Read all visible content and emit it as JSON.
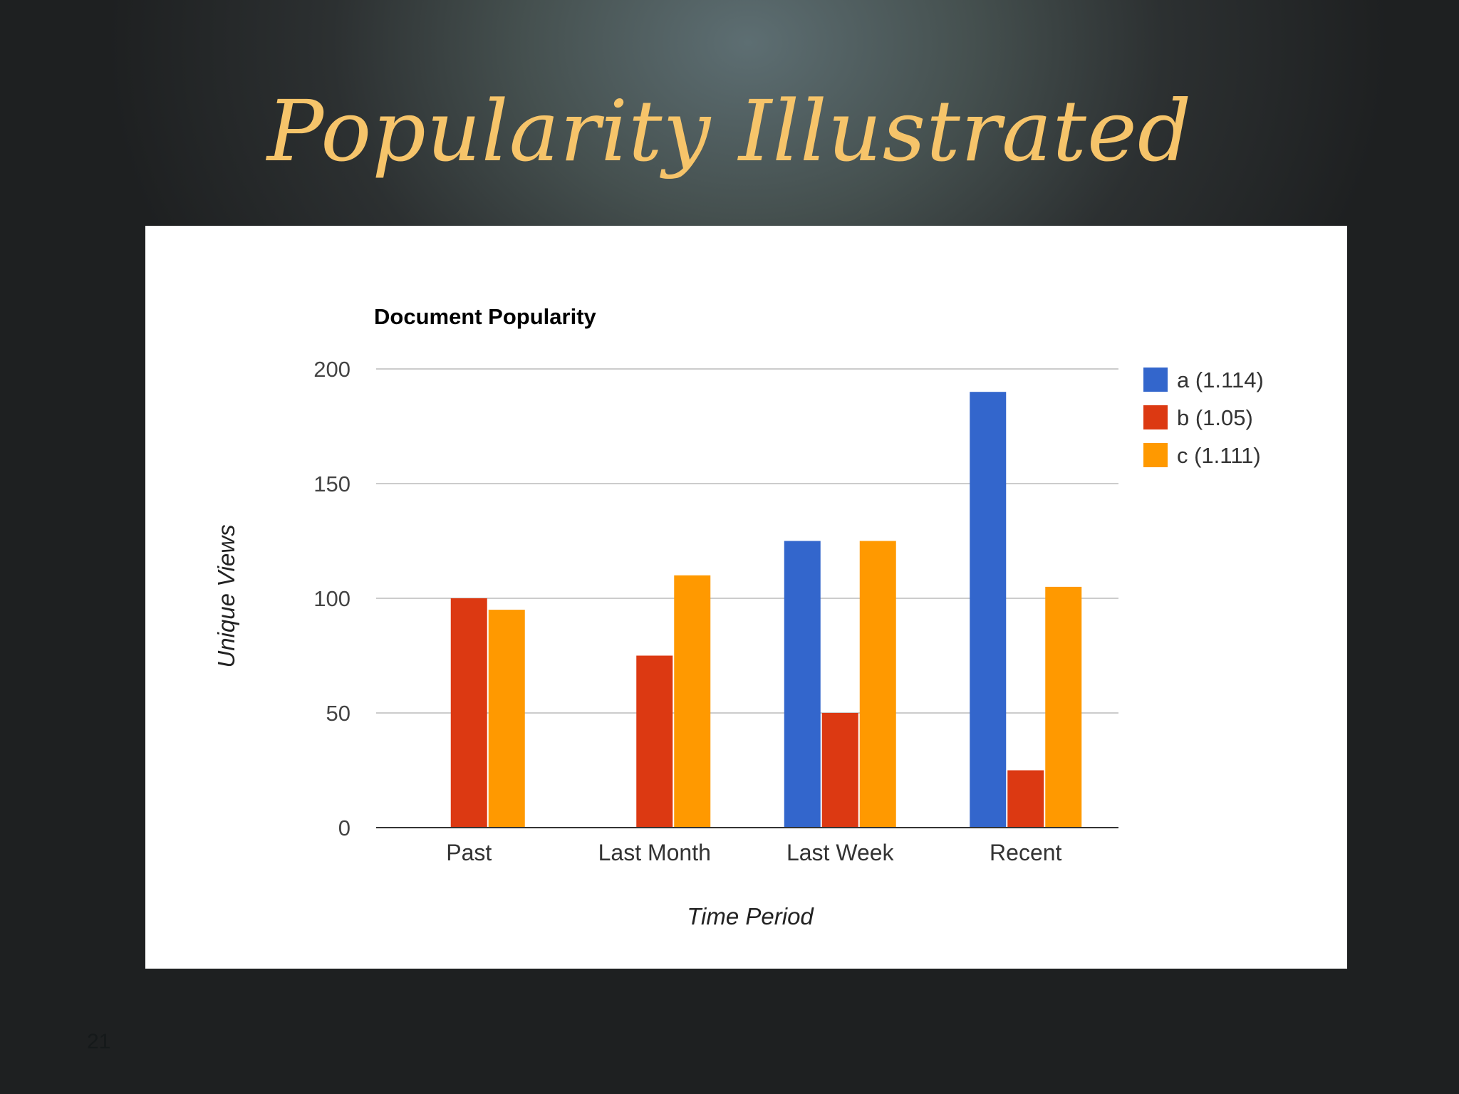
{
  "slide": {
    "title": "Popularity Illustrated",
    "page_number": "21"
  },
  "colors": {
    "title": "#f6c46a",
    "grid": "#cccccc",
    "axis": "#333333",
    "tick_text": "#444444"
  },
  "chart_data": {
    "type": "bar",
    "title": "Document Popularity",
    "xlabel": "Time Period",
    "ylabel": "Unique Views",
    "ylim": [
      0,
      200
    ],
    "yticks": [
      0,
      50,
      100,
      150,
      200
    ],
    "grid": true,
    "legend_position": "right",
    "categories": [
      "Past",
      "Last Month",
      "Last Week",
      "Recent"
    ],
    "series": [
      {
        "name": "a (1.114)",
        "color": "#3366cc",
        "values": [
          0,
          0,
          125,
          190
        ]
      },
      {
        "name": "b (1.05)",
        "color": "#dc3912",
        "values": [
          100,
          75,
          50,
          25
        ]
      },
      {
        "name": "c (1.111)",
        "color": "#ff9900",
        "values": [
          95,
          110,
          125,
          105
        ]
      }
    ]
  }
}
